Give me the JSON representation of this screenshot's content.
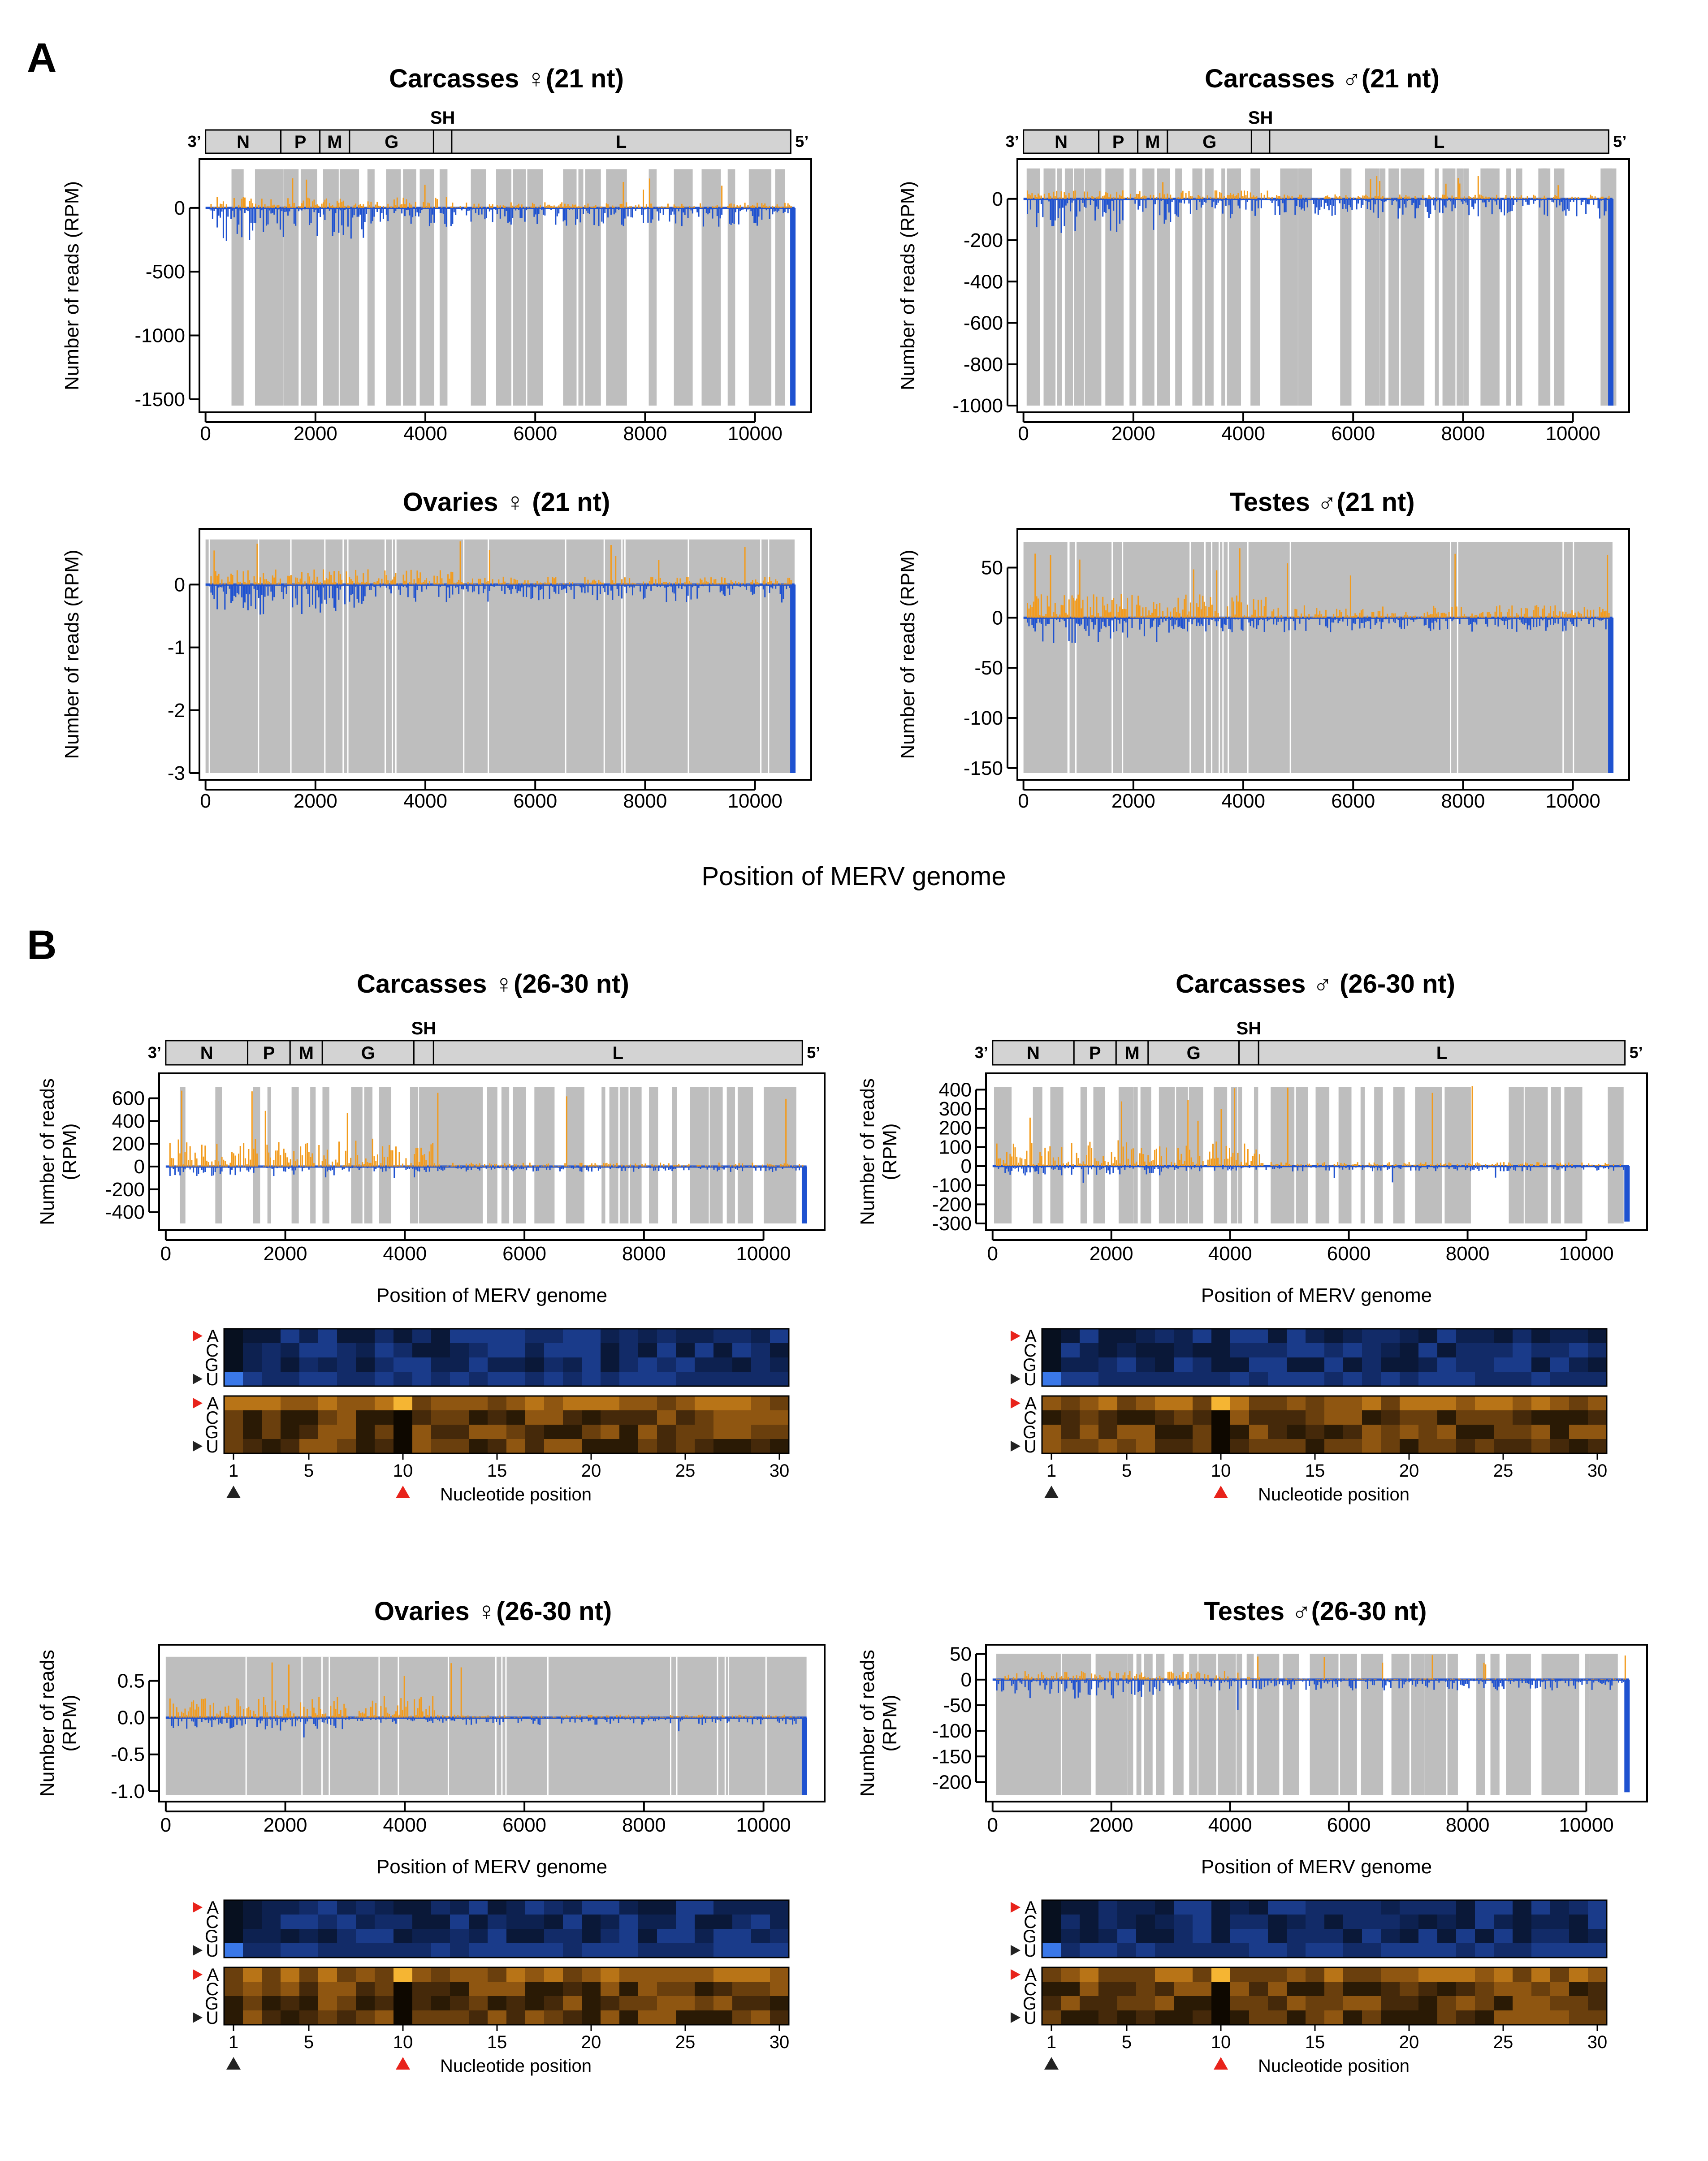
{
  "figure": {
    "panel_labels": [
      "A",
      "B"
    ],
    "shared_xlabel": "Position of MERV genome",
    "colors": {
      "sense": "#F29B1D",
      "antisense": "#1F52D0",
      "gap": "#BEBEBE",
      "map_box": "#D3D3D3"
    }
  },
  "genome_map": {
    "genes": [
      "N",
      "P",
      "M",
      "G",
      "SH",
      "L"
    ],
    "start": "3’",
    "end": "5’"
  },
  "chart_data": [
    {
      "id": "A1",
      "type": "bar",
      "title": "Carcasses ♀(21 nt)",
      "xlabel": "",
      "ylabel": "Number of reads (RPM)",
      "xlim": [
        0,
        10800
      ],
      "ylim": [
        -1550,
        330
      ],
      "xticks": [
        "0",
        "2000",
        "4000",
        "6000",
        "8000",
        "10000"
      ],
      "yticks": [
        "0",
        "-500",
        "-1000",
        "-1500"
      ],
      "series": [
        {
          "name": "sense",
          "peak": 250
        },
        {
          "name": "antisense",
          "peak": -1550
        }
      ]
    },
    {
      "id": "A2",
      "type": "bar",
      "title": "Carcasses ♂(21 nt)",
      "xlabel": "",
      "ylabel": "Number of reads (RPM)",
      "xlim": [
        0,
        10800
      ],
      "ylim": [
        -1000,
        160
      ],
      "xticks": [
        "0",
        "2000",
        "4000",
        "6000",
        "8000",
        "10000"
      ],
      "yticks": [
        "0",
        "-200",
        "-400",
        "-600",
        "-800",
        "-1000"
      ],
      "series": [
        {
          "name": "sense",
          "peak": 120
        },
        {
          "name": "antisense",
          "peak": -1000
        }
      ]
    },
    {
      "id": "A3",
      "type": "bar",
      "title": "Ovaries ♀ (21 nt)",
      "xlabel": "",
      "ylabel": "Number of reads (RPM)",
      "xlim": [
        0,
        10800
      ],
      "ylim": [
        -3,
        0.78
      ],
      "xticks": [
        "0",
        "2000",
        "4000",
        "6000",
        "8000",
        "10000"
      ],
      "yticks": [
        "0",
        "-1",
        "-2",
        "-3"
      ],
      "series": [
        {
          "name": "sense",
          "peak": 0.7
        },
        {
          "name": "antisense",
          "peak": -3
        }
      ]
    },
    {
      "id": "A4",
      "type": "bar",
      "title": "Testes ♂(21 nt)",
      "xlabel": "",
      "ylabel": "Number of reads (RPM)",
      "xlim": [
        0,
        10800
      ],
      "ylim": [
        -155,
        82
      ],
      "xticks": [
        "0",
        "2000",
        "4000",
        "6000",
        "8000",
        "10000"
      ],
      "yticks": [
        "50",
        "0",
        "-50",
        "-100",
        "-150"
      ],
      "series": [
        {
          "name": "sense",
          "peak": 70
        },
        {
          "name": "antisense",
          "peak": -155
        }
      ]
    },
    {
      "id": "B1",
      "type": "bar",
      "title": "Carcasses  ♀(26-30 nt)",
      "xlabel": "Position of MERV genome",
      "ylabel": "Number of reads (RPM)",
      "xlim": [
        0,
        10800
      ],
      "ylim": [
        -500,
        760
      ],
      "xticks": [
        "0",
        "2000",
        "4000",
        "6000",
        "8000",
        "10000"
      ],
      "yticks": [
        "600",
        "400",
        "200",
        "0",
        "-200",
        "-400"
      ],
      "series": [
        {
          "name": "sense",
          "peak": 700
        },
        {
          "name": "antisense",
          "peak": -500
        }
      ]
    },
    {
      "id": "B2",
      "type": "bar",
      "title": "Carcasses ♂ (26-30 nt)",
      "xlabel": "Position of MERV genome",
      "ylabel": "Number of reads (RPM)",
      "xlim": [
        0,
        10800
      ],
      "ylim": [
        -300,
        450
      ],
      "xticks": [
        "0",
        "2000",
        "4000",
        "6000",
        "8000",
        "10000"
      ],
      "yticks": [
        "400",
        "300",
        "200",
        "100",
        "0",
        "-100",
        "-200",
        "-300"
      ],
      "series": [
        {
          "name": "sense",
          "peak": 420
        },
        {
          "name": "antisense",
          "peak": -290
        }
      ]
    },
    {
      "id": "B3",
      "type": "bar",
      "title": "Ovaries ♀(26-30 nt)",
      "xlabel": "Position of MERV genome",
      "ylabel": "Number of reads (RPM)",
      "xlim": [
        0,
        10800
      ],
      "ylim": [
        -1.05,
        0.9
      ],
      "xticks": [
        "0",
        "2000",
        "4000",
        "6000",
        "8000",
        "10000"
      ],
      "yticks": [
        "0.5",
        "0.0",
        "-0.5",
        "-1.0"
      ],
      "series": [
        {
          "name": "sense",
          "peak": 0.85
        },
        {
          "name": "antisense",
          "peak": -1.05
        }
      ]
    },
    {
      "id": "B4",
      "type": "bar",
      "title": "Testes ♂(26-30 nt)",
      "xlabel": "Position of MERV genome",
      "ylabel": "Number of reads (RPM)",
      "xlim": [
        0,
        10800
      ],
      "ylim": [
        -225,
        55
      ],
      "xticks": [
        "0",
        "2000",
        "4000",
        "6000",
        "8000",
        "10000"
      ],
      "yticks": [
        "50",
        "0",
        "-50",
        "-100",
        "-150",
        "-200"
      ],
      "series": [
        {
          "name": "sense",
          "peak": 50
        },
        {
          "name": "antisense",
          "peak": -220
        }
      ]
    }
  ],
  "heatmaps": {
    "type": "heatmap",
    "rows": [
      "A",
      "C",
      "G",
      "U"
    ],
    "xticks": [
      "1",
      "5",
      "10",
      "15",
      "20",
      "25",
      "30"
    ],
    "xlabel": "Nucleotide position",
    "columns": 30,
    "marked_positions": {
      "black": 1,
      "red": 10
    },
    "antisense_bias": "U at position 1",
    "sense_bias": "A at position 10"
  }
}
